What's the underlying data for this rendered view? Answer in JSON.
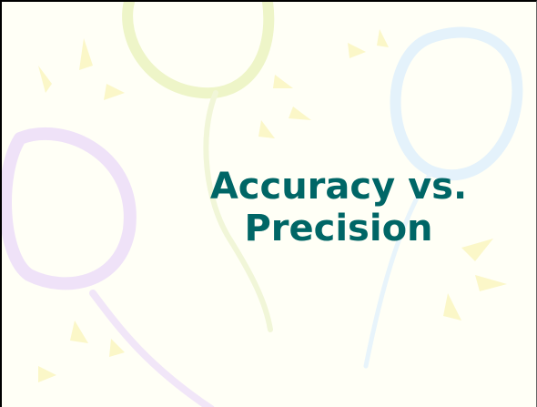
{
  "slide": {
    "title": "Accuracy vs. Precision"
  }
}
